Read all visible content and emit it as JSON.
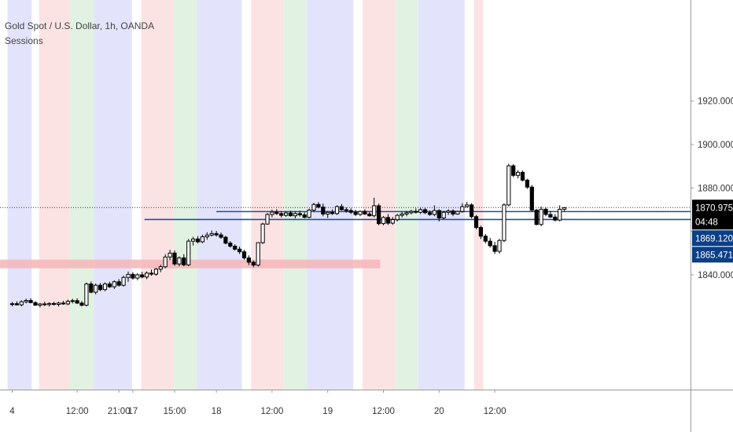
{
  "chart_data": {
    "type": "candlestick",
    "title": "Gold Spot / U.S. Dollar, 1h, OANDA",
    "indicator": "Sessions",
    "ylim": [
      1825,
      1938
    ],
    "y_ticks": [
      {
        "value": 1840,
        "label": "1840.000"
      },
      {
        "value": 1860,
        "label": ""
      },
      {
        "value": 1880,
        "label": "1880.000"
      },
      {
        "value": 1900,
        "label": "1900.000"
      },
      {
        "value": 1920,
        "label": "1920.000"
      }
    ],
    "x_ticks": [
      {
        "i": 0,
        "label": "4"
      },
      {
        "i": 14,
        "label": "12:00"
      },
      {
        "i": 23,
        "label": "21:00"
      },
      {
        "i": 26,
        "label": "17"
      },
      {
        "i": 35,
        "label": "15:00"
      },
      {
        "i": 44,
        "label": "18"
      },
      {
        "i": 56,
        "label": "12:00"
      },
      {
        "i": 68,
        "label": "19"
      },
      {
        "i": 80,
        "label": "12:00"
      },
      {
        "i": 92,
        "label": "20"
      },
      {
        "i": 104,
        "label": "12:00"
      }
    ],
    "sessions": [
      {
        "from": -1,
        "to": 4.2,
        "color": "blue"
      },
      {
        "from": 5.8,
        "to": 12.3,
        "color": "red"
      },
      {
        "from": 12.3,
        "to": 17.6,
        "color": "green"
      },
      {
        "from": 17.6,
        "to": 25.8,
        "color": "blue"
      },
      {
        "from": 27.8,
        "to": 34.8,
        "color": "red"
      },
      {
        "from": 34.8,
        "to": 39.8,
        "color": "green"
      },
      {
        "from": 39.8,
        "to": 49.5,
        "color": "blue"
      },
      {
        "from": 51.5,
        "to": 58.5,
        "color": "red"
      },
      {
        "from": 58.5,
        "to": 63.5,
        "color": "green"
      },
      {
        "from": 63.5,
        "to": 73.5,
        "color": "blue"
      },
      {
        "from": 75.5,
        "to": 82.5,
        "color": "red"
      },
      {
        "from": 82.5,
        "to": 87.5,
        "color": "green"
      },
      {
        "from": 87.5,
        "to": 97.5,
        "color": "blue"
      },
      {
        "from": 99.5,
        "to": 101.5,
        "color": "red"
      }
    ],
    "zone": {
      "from": -1,
      "to": 79.3,
      "low": 1843,
      "high": 1847,
      "color": "#f5b5b8"
    },
    "hlines": [
      {
        "from": 44,
        "to": 116,
        "value": 1869.12,
        "color": "#1f4e9c"
      },
      {
        "from": 28.5,
        "to": 116,
        "value": 1865.471,
        "color": "#1f4e9c"
      }
    ],
    "last_price_line": 1870.975,
    "price_labels": [
      {
        "value": 1870.975,
        "text": "1870.975",
        "sub": "04:48",
        "bg": "#000000",
        "fg": "#ffffff"
      },
      {
        "value": 1869.12,
        "text": "1869.120",
        "sub": "",
        "bg": "#0b3f86",
        "fg": "#ffffff"
      },
      {
        "value": 1865.471,
        "text": "1865.471",
        "sub": "",
        "bg": "#0b3f86",
        "fg": "#ffffff"
      }
    ],
    "candles": [
      [
        0,
        1826.5,
        1827.5,
        1825.5,
        1826.7
      ],
      [
        1,
        1826.7,
        1827.8,
        1825.9,
        1826.2
      ],
      [
        2,
        1826.2,
        1828.3,
        1825.5,
        1827.6
      ],
      [
        3,
        1827.6,
        1829.0,
        1826.8,
        1828.2
      ],
      [
        4,
        1828.2,
        1829.2,
        1827.0,
        1827.2
      ],
      [
        5,
        1827.2,
        1827.9,
        1825.8,
        1826.0
      ],
      [
        6,
        1826.0,
        1827.0,
        1825.0,
        1826.6
      ],
      [
        7,
        1826.6,
        1827.6,
        1825.6,
        1826.3
      ],
      [
        8,
        1826.3,
        1827.4,
        1825.4,
        1826.8
      ],
      [
        9,
        1826.8,
        1827.6,
        1825.8,
        1826.4
      ],
      [
        10,
        1826.4,
        1827.6,
        1825.4,
        1827.0
      ],
      [
        11,
        1827.0,
        1828.0,
        1826.2,
        1826.6
      ],
      [
        12,
        1826.6,
        1828.6,
        1826.0,
        1827.8
      ],
      [
        13,
        1827.8,
        1829.0,
        1826.8,
        1828.1
      ],
      [
        14,
        1828.1,
        1829.2,
        1826.6,
        1827.0
      ],
      [
        15,
        1827.0,
        1828.0,
        1825.4,
        1826.0
      ],
      [
        16,
        1826.0,
        1836.5,
        1825.5,
        1835.8
      ],
      [
        17,
        1835.8,
        1837.0,
        1831.5,
        1832.0
      ],
      [
        18,
        1832.0,
        1836.0,
        1831.0,
        1835.2
      ],
      [
        19,
        1835.2,
        1836.2,
        1832.5,
        1833.2
      ],
      [
        20,
        1833.2,
        1836.5,
        1832.5,
        1835.8
      ],
      [
        21,
        1835.8,
        1836.8,
        1834.0,
        1834.5
      ],
      [
        22,
        1834.5,
        1837.5,
        1833.5,
        1836.8
      ],
      [
        23,
        1836.8,
        1838.0,
        1834.6,
        1835.2
      ],
      [
        24,
        1835.2,
        1839.6,
        1834.6,
        1838.8
      ],
      [
        25,
        1838.8,
        1841.5,
        1836.8,
        1840.2
      ],
      [
        26,
        1840.2,
        1841.2,
        1837.8,
        1838.5
      ],
      [
        27,
        1838.5,
        1840.8,
        1837.5,
        1840.0
      ],
      [
        28,
        1840.0,
        1841.4,
        1838.4,
        1839.0
      ],
      [
        29,
        1839.0,
        1841.6,
        1838.0,
        1840.8
      ],
      [
        30,
        1840.8,
        1842.4,
        1839.6,
        1840.3
      ],
      [
        31,
        1840.3,
        1843.2,
        1839.6,
        1842.6
      ],
      [
        32,
        1842.6,
        1844.6,
        1841.2,
        1843.7
      ],
      [
        33,
        1843.7,
        1849.5,
        1843.0,
        1848.2
      ],
      [
        34,
        1848.2,
        1851.5,
        1846.8,
        1850.0
      ],
      [
        35,
        1850.0,
        1851.2,
        1844.2,
        1845.0
      ],
      [
        36,
        1845.0,
        1848.5,
        1844.0,
        1847.8
      ],
      [
        37,
        1847.8,
        1849.5,
        1844.0,
        1844.6
      ],
      [
        38,
        1844.6,
        1856.5,
        1844.0,
        1855.5
      ],
      [
        39,
        1855.5,
        1857.5,
        1853.5,
        1856.5
      ],
      [
        40,
        1856.5,
        1857.8,
        1854.5,
        1855.2
      ],
      [
        41,
        1855.2,
        1858.5,
        1854.6,
        1857.5
      ],
      [
        42,
        1857.5,
        1859.6,
        1856.2,
        1858.3
      ],
      [
        43,
        1858.3,
        1860.4,
        1857.6,
        1859.0
      ],
      [
        44,
        1859.0,
        1860.2,
        1857.6,
        1858.4
      ],
      [
        45,
        1858.4,
        1859.5,
        1856.6,
        1857.3
      ],
      [
        46,
        1857.3,
        1858.0,
        1854.0,
        1854.6
      ],
      [
        47,
        1854.6,
        1855.5,
        1852.5,
        1853.2
      ],
      [
        48,
        1853.2,
        1854.0,
        1851.2,
        1851.8
      ],
      [
        49,
        1851.8,
        1853.0,
        1849.6,
        1850.6
      ],
      [
        50,
        1850.6,
        1851.5,
        1847.0,
        1847.8
      ],
      [
        51,
        1847.8,
        1849.0,
        1844.5,
        1845.8
      ],
      [
        52,
        1845.8,
        1846.6,
        1843.5,
        1844.5
      ],
      [
        53,
        1844.5,
        1855.0,
        1843.8,
        1854.8
      ],
      [
        54,
        1854.8,
        1864.0,
        1854.2,
        1863.4
      ],
      [
        55,
        1863.4,
        1868.5,
        1863.0,
        1867.8
      ],
      [
        56,
        1867.8,
        1870.0,
        1866.5,
        1868.9
      ],
      [
        57,
        1868.9,
        1870.2,
        1867.6,
        1868.2
      ],
      [
        58,
        1868.2,
        1869.2,
        1866.4,
        1867.4
      ],
      [
        59,
        1867.4,
        1869.2,
        1866.6,
        1868.5
      ],
      [
        60,
        1868.5,
        1869.5,
        1866.8,
        1867.2
      ],
      [
        61,
        1867.2,
        1869.0,
        1866.0,
        1868.2
      ],
      [
        62,
        1868.2,
        1869.5,
        1866.8,
        1867.6
      ],
      [
        63,
        1867.6,
        1868.8,
        1866.0,
        1866.5
      ],
      [
        64,
        1866.5,
        1870.5,
        1866.0,
        1869.8
      ],
      [
        65,
        1869.8,
        1873.2,
        1869.0,
        1872.4
      ],
      [
        66,
        1872.4,
        1873.5,
        1870.6,
        1871.2
      ],
      [
        67,
        1871.2,
        1872.8,
        1867.0,
        1868.0
      ],
      [
        68,
        1868.0,
        1869.4,
        1866.2,
        1868.8
      ],
      [
        69,
        1868.8,
        1870.2,
        1867.6,
        1868.2
      ],
      [
        70,
        1868.2,
        1872.0,
        1867.6,
        1871.4
      ],
      [
        71,
        1871.4,
        1872.6,
        1869.6,
        1870.0
      ],
      [
        72,
        1870.0,
        1871.0,
        1868.6,
        1869.6
      ],
      [
        73,
        1869.6,
        1870.6,
        1868.0,
        1868.8
      ],
      [
        74,
        1868.8,
        1870.0,
        1867.0,
        1867.8
      ],
      [
        75,
        1867.8,
        1869.6,
        1867.0,
        1869.2
      ],
      [
        76,
        1869.2,
        1870.2,
        1867.6,
        1868.0
      ],
      [
        77,
        1868.0,
        1869.0,
        1866.8,
        1867.2
      ],
      [
        78,
        1867.2,
        1875.5,
        1866.5,
        1871.8
      ],
      [
        79,
        1871.8,
        1872.8,
        1862.8,
        1863.6
      ],
      [
        80,
        1863.6,
        1867.0,
        1862.8,
        1866.4
      ],
      [
        81,
        1866.4,
        1868.0,
        1863.0,
        1863.8
      ],
      [
        82,
        1863.8,
        1866.6,
        1863.0,
        1865.4
      ],
      [
        83,
        1865.4,
        1868.0,
        1864.6,
        1867.4
      ],
      [
        84,
        1867.4,
        1869.0,
        1866.4,
        1868.0
      ],
      [
        85,
        1868.0,
        1869.4,
        1867.0,
        1868.6
      ],
      [
        86,
        1868.6,
        1870.0,
        1867.8,
        1869.2
      ],
      [
        87,
        1869.2,
        1870.6,
        1868.2,
        1868.8
      ],
      [
        88,
        1868.8,
        1870.8,
        1868.0,
        1870.0
      ],
      [
        89,
        1870.0,
        1870.8,
        1868.0,
        1868.6
      ],
      [
        90,
        1868.6,
        1869.6,
        1867.2,
        1867.8
      ],
      [
        91,
        1867.8,
        1872.0,
        1867.0,
        1869.6
      ],
      [
        92,
        1869.6,
        1870.2,
        1864.6,
        1866.2
      ],
      [
        93,
        1866.2,
        1869.4,
        1865.6,
        1868.8
      ],
      [
        94,
        1868.8,
        1870.2,
        1867.6,
        1869.4
      ],
      [
        95,
        1869.4,
        1870.2,
        1867.0,
        1868.0
      ],
      [
        96,
        1868.0,
        1869.6,
        1867.6,
        1869.2
      ],
      [
        97,
        1869.2,
        1873.0,
        1868.6,
        1871.4
      ],
      [
        98,
        1871.4,
        1873.6,
        1871.0,
        1872.2
      ],
      [
        99,
        1872.2,
        1873.0,
        1866.0,
        1866.8
      ],
      [
        100,
        1866.8,
        1867.6,
        1861.0,
        1861.8
      ],
      [
        101,
        1861.8,
        1862.6,
        1856.5,
        1857.8
      ],
      [
        102,
        1857.8,
        1858.8,
        1854.5,
        1855.5
      ],
      [
        103,
        1855.5,
        1857.0,
        1852.5,
        1853.4
      ],
      [
        104,
        1853.4,
        1855.2,
        1849.6,
        1850.8
      ],
      [
        105,
        1850.8,
        1856.6,
        1849.8,
        1855.8
      ],
      [
        106,
        1855.8,
        1873.0,
        1855.0,
        1872.2
      ],
      [
        107,
        1872.2,
        1891.2,
        1871.5,
        1890.2
      ],
      [
        108,
        1890.2,
        1891.0,
        1885.0,
        1885.8
      ],
      [
        109,
        1885.8,
        1888.2,
        1884.4,
        1887.2
      ],
      [
        110,
        1887.2,
        1888.0,
        1883.0,
        1883.6
      ],
      [
        111,
        1883.6,
        1884.2,
        1879.6,
        1880.4
      ],
      [
        112,
        1880.4,
        1881.4,
        1869.0,
        1869.8
      ],
      [
        113,
        1869.8,
        1870.4,
        1862.8,
        1863.2
      ],
      [
        114,
        1863.2,
        1871.5,
        1862.4,
        1870.2
      ],
      [
        115,
        1870.2,
        1871.0,
        1867.0,
        1867.8
      ],
      [
        116,
        1867.8,
        1869.4,
        1866.2,
        1866.6
      ],
      [
        117,
        1866.6,
        1868.0,
        1864.6,
        1865.2
      ],
      [
        118,
        1865.2,
        1872.0,
        1864.6,
        1870.2
      ],
      [
        119,
        1870.2,
        1871.2,
        1869.2,
        1870.9
      ]
    ]
  }
}
